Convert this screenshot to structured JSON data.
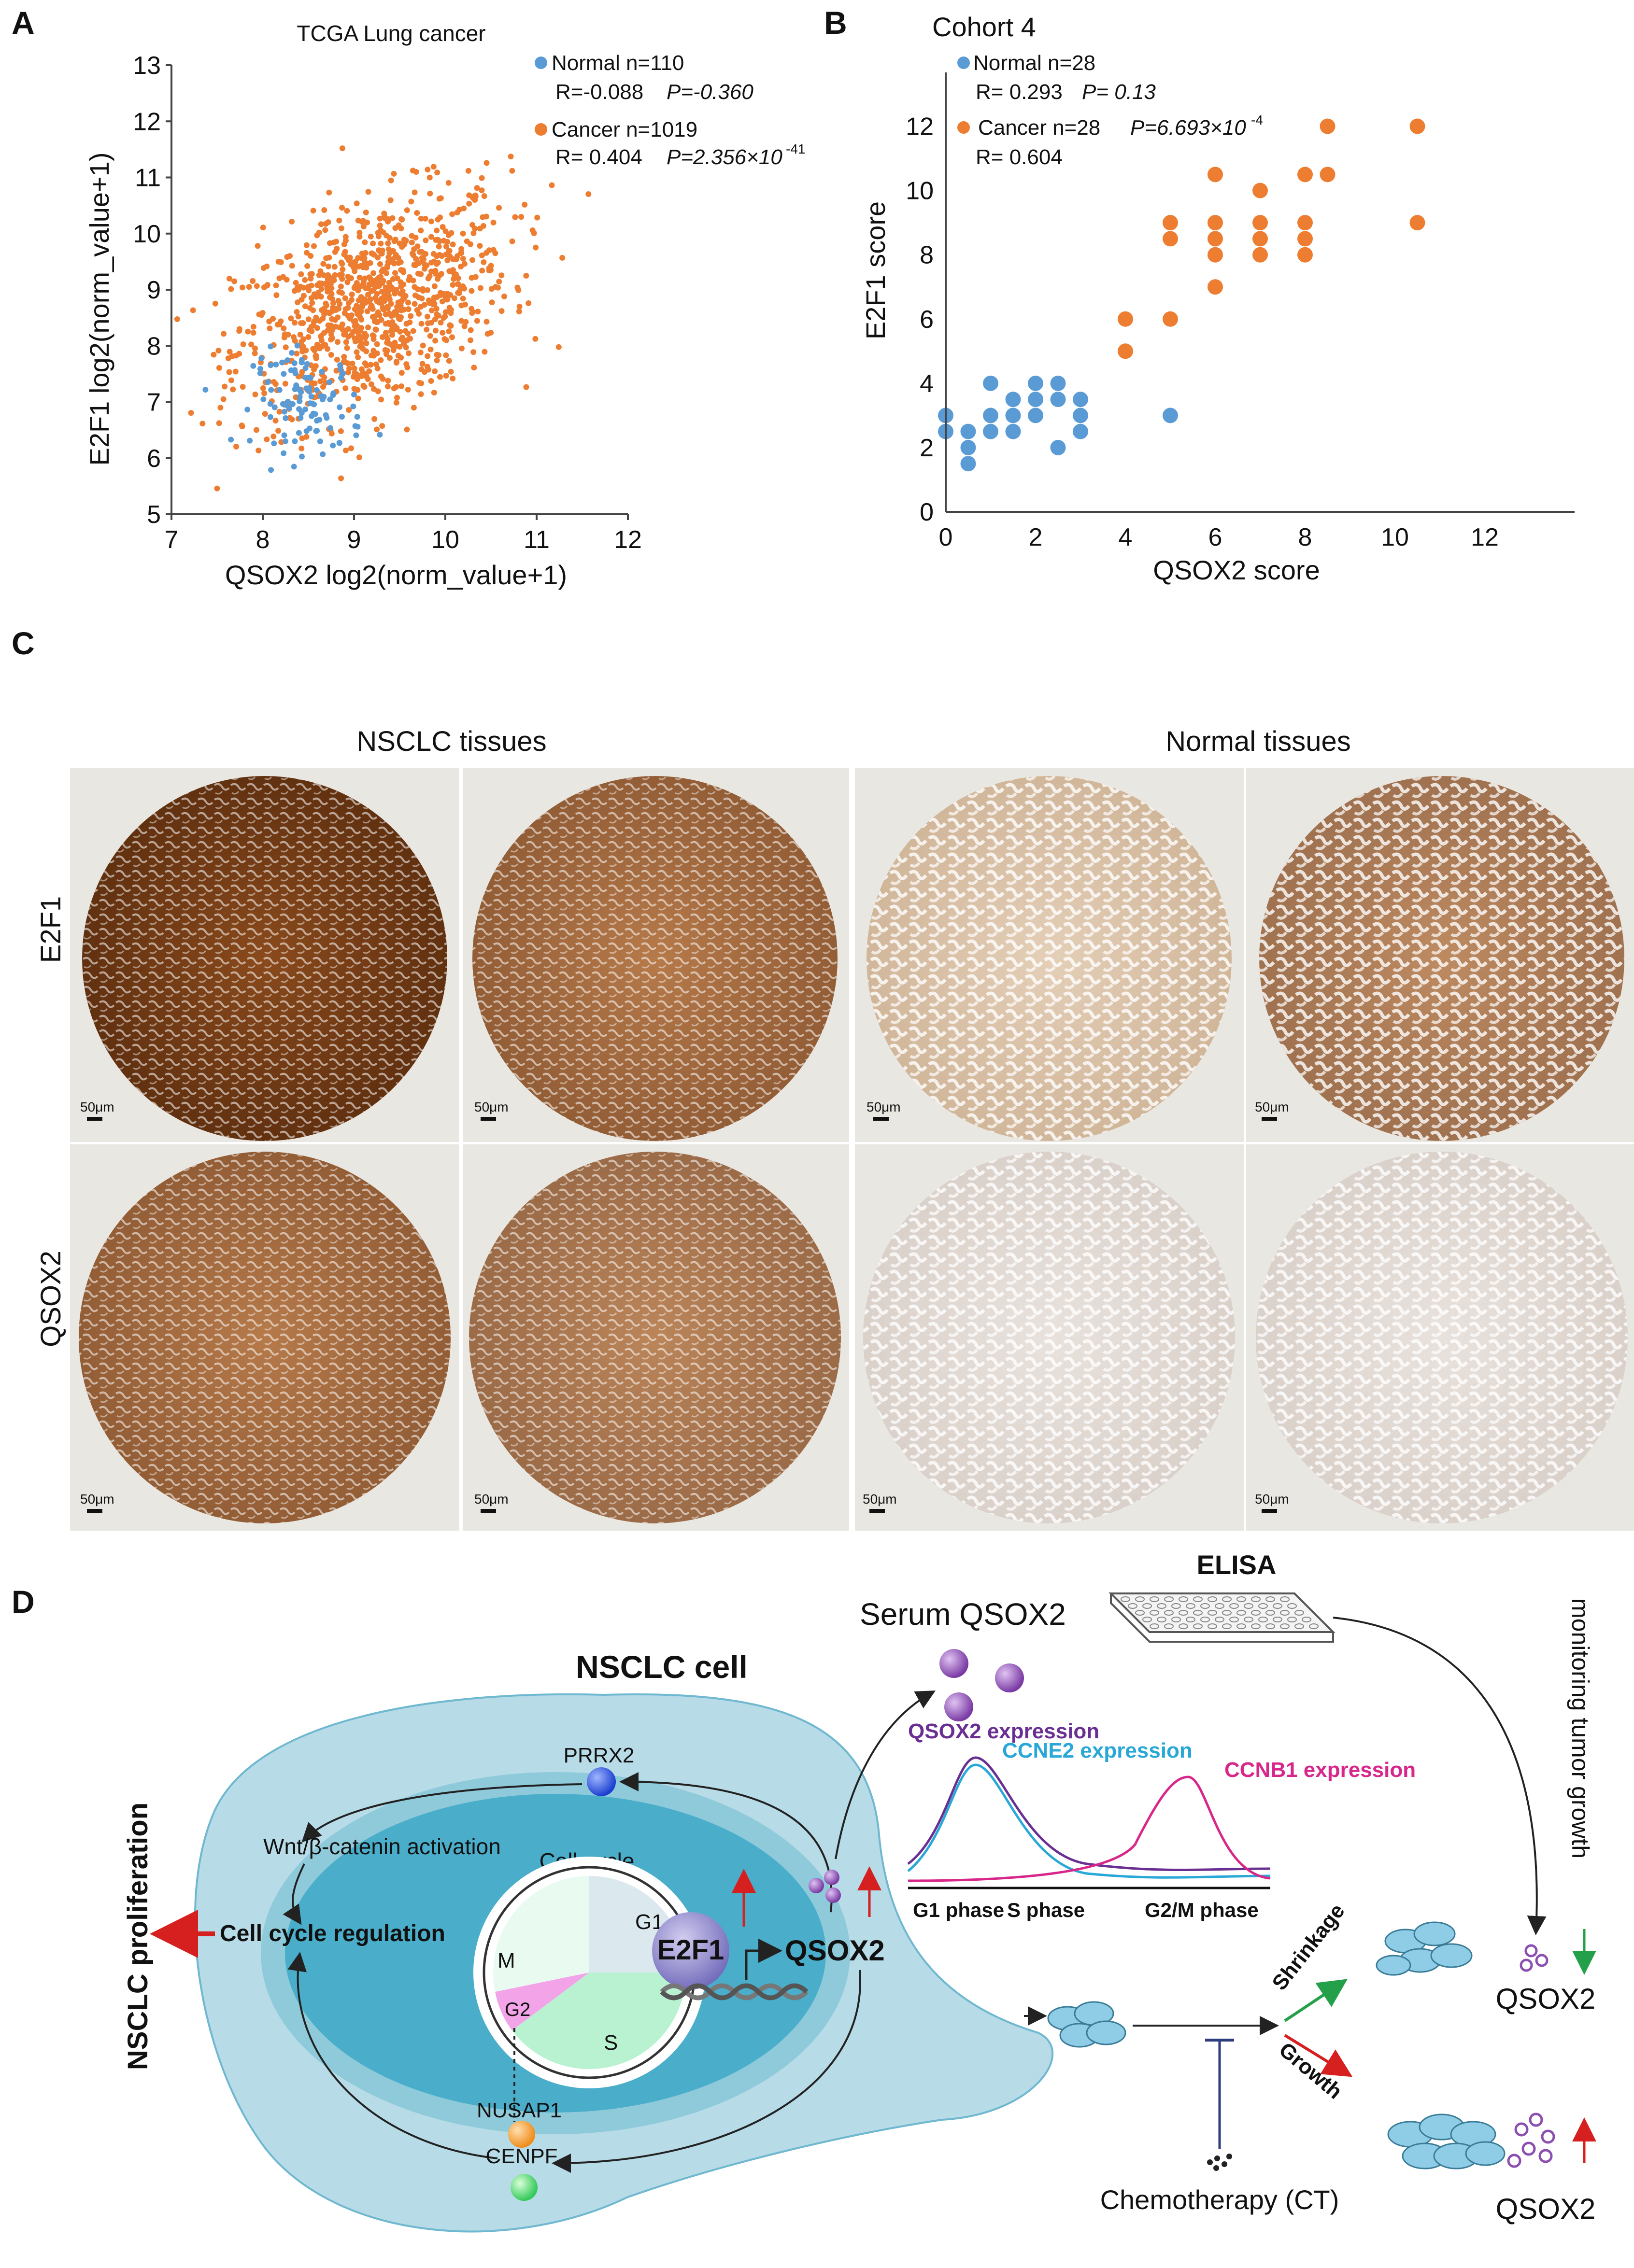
{
  "panels": {
    "A": "A",
    "B": "B",
    "C": "C",
    "D": "D"
  },
  "chart_data": [
    {
      "type": "scatter",
      "title": "TCGA Lung cancer",
      "xlabel": "QSOX2 log2(norm_value+1)",
      "ylabel": "E2F1 log2(norm_value+1)",
      "xlim": [
        7,
        12
      ],
      "ylim": [
        5,
        13
      ],
      "xticks": [
        "7",
        "8",
        "9",
        "10",
        "11",
        "12"
      ],
      "yticks": [
        "5",
        "6",
        "7",
        "8",
        "9",
        "10",
        "11",
        "12",
        "13"
      ],
      "legend": {
        "normal_line1": "Normal  n=110",
        "normal_line2_r": "R=-0.088",
        "normal_line2_p": "P=-0.360",
        "cancer_line1": "Cancer n=1019",
        "cancer_line2_r": "R= 0.404",
        "cancer_line2_p": "P=2.356×10",
        "cancer_line2_exp": "-41"
      },
      "series": [
        {
          "name": "Normal",
          "n": 110,
          "color": "#5b9bd5",
          "x_center": 8.5,
          "y_center": 7.0,
          "x_sd": 0.3,
          "y_sd": 0.45,
          "r": -0.088
        },
        {
          "name": "Cancer",
          "n": 1019,
          "color": "#ed7d31",
          "x_center": 9.2,
          "y_center": 8.7,
          "x_sd": 0.75,
          "y_sd": 1.0,
          "r": 0.404
        }
      ]
    },
    {
      "type": "scatter",
      "title": "Cohort 4",
      "xlabel": "QSOX2 score",
      "ylabel": "E2F1 score",
      "xlim": [
        0,
        14
      ],
      "ylim": [
        0,
        13
      ],
      "xticks": [
        "0",
        "2",
        "4",
        "6",
        "8",
        "10",
        "12"
      ],
      "yticks": [
        "0",
        "2",
        "4",
        "6",
        "8",
        "10",
        "12"
      ],
      "legend": {
        "normal_line1": "Normal  n=28",
        "normal_line2_r": "R= 0.293",
        "normal_line2_p": "P= 0.13",
        "cancer_line1": "Cancer n=28",
        "cancer_line1_p": "P=6.693×10",
        "cancer_line1_exp": "-4",
        "cancer_line2_r": "R= 0.604"
      },
      "series": [
        {
          "name": "Normal",
          "color": "#5b9bd5",
          "points": [
            [
              0,
              2.5
            ],
            [
              0,
              3
            ],
            [
              0.5,
              1.5
            ],
            [
              0.5,
              2
            ],
            [
              0.5,
              2.5
            ],
            [
              1,
              2.5
            ],
            [
              1,
              3
            ],
            [
              1,
              4
            ],
            [
              1.5,
              2.5
            ],
            [
              1.5,
              3
            ],
            [
              1.5,
              3.5
            ],
            [
              2,
              3
            ],
            [
              2,
              3.5
            ],
            [
              2,
              4
            ],
            [
              2.5,
              2
            ],
            [
              2.5,
              3.5
            ],
            [
              2.5,
              4
            ],
            [
              3,
              2.5
            ],
            [
              3,
              3
            ],
            [
              3,
              3.5
            ],
            [
              5,
              3
            ]
          ]
        },
        {
          "name": "Cancer",
          "color": "#ed7d31",
          "points": [
            [
              4,
              5
            ],
            [
              4,
              6
            ],
            [
              5,
              6
            ],
            [
              5,
              8.5
            ],
            [
              5,
              9
            ],
            [
              6,
              7
            ],
            [
              6,
              8
            ],
            [
              6,
              8.5
            ],
            [
              6,
              9
            ],
            [
              6,
              10.5
            ],
            [
              7,
              8
            ],
            [
              7,
              8.5
            ],
            [
              7,
              9
            ],
            [
              7,
              10
            ],
            [
              8,
              8
            ],
            [
              8,
              8.5
            ],
            [
              8,
              9
            ],
            [
              8,
              10.5
            ],
            [
              8.5,
              10.5
            ],
            [
              8.5,
              12
            ],
            [
              10.5,
              9
            ],
            [
              10.5,
              12
            ]
          ]
        }
      ]
    }
  ],
  "panel_c": {
    "header_left": "NSCLC tissues",
    "header_right": "Normal tissues",
    "row1_label": "E2F1",
    "row2_label": "QSOX2",
    "scale": "50μm"
  },
  "panel_d": {
    "elisa": "ELISA",
    "serum": "Serum QSOX2",
    "nsclc_cell": "NSCLC cell",
    "prrx2": "PRRX2",
    "wnt": "Wnt/β-catenin activation",
    "cell_cycle": "Cell cycle",
    "e2f1": "E2F1",
    "qsox2": "QSOX2",
    "cc_regulation": "Cell cycle regulation",
    "proliferation": "NSCLC proliferation",
    "g1": "G1",
    "s": "S",
    "g2": "G2",
    "m": "M",
    "nusap1": "NUSAP1",
    "cenpf": "CENPF",
    "qsox2_expr": "QSOX2 expression",
    "ccne2_expr": "CCNE2 expression",
    "ccnb1_expr": "CCNB1 expression",
    "phase_g1": "G1 phase",
    "phase_s": "S phase",
    "phase_g2m": "G2/M phase",
    "monitoring": "monitoring tumor growth",
    "shrinkage": "Shrinkage",
    "growth": "Growth",
    "chemo": "Chemotherapy (CT)",
    "qsox2_low": "QSOX2",
    "qsox2_high": "QSOX2",
    "colors": {
      "outer_cell": "#b7dbe7",
      "nucleus_ring": "#8fcadb",
      "nucleus": "#4aaecb",
      "purple": "#8b4fb0",
      "cyan": "#29a8d8",
      "magenta": "#d8268a",
      "red": "#d62020",
      "green": "#24a04a"
    }
  }
}
